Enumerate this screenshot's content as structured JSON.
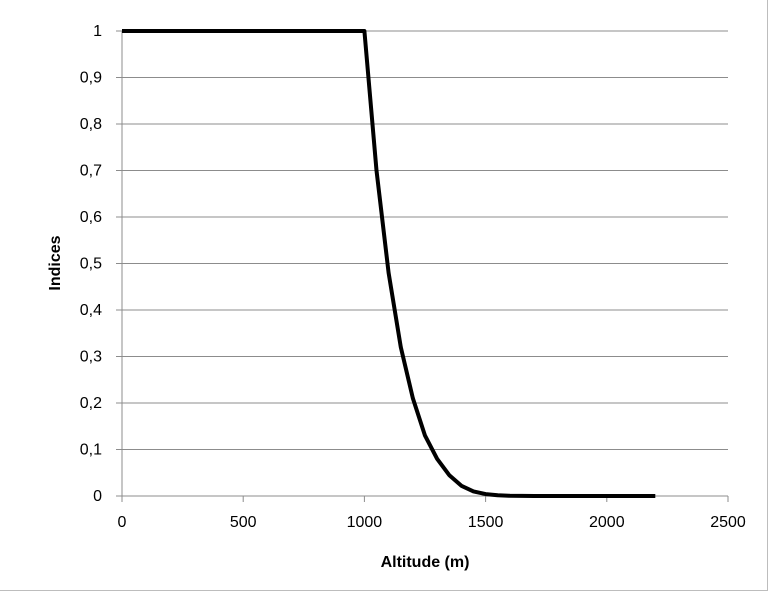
{
  "chart_data": {
    "type": "line",
    "title": "",
    "xlabel": "Altitude (m)",
    "ylabel": "Indices",
    "xlim": [
      0,
      2500
    ],
    "ylim": [
      0,
      1
    ],
    "x_ticks": [
      "0",
      "500",
      "1000",
      "1500",
      "2000",
      "2500"
    ],
    "y_ticks": [
      "0",
      "0,1",
      "0,2",
      "0,3",
      "0,4",
      "0,5",
      "0,6",
      "0,7",
      "0,8",
      "0,9",
      "1"
    ],
    "grid": "horizontal",
    "legend": "none",
    "series": [
      {
        "color": "#000000",
        "x": [
          0,
          100,
          200,
          300,
          400,
          500,
          600,
          700,
          800,
          900,
          1000,
          1050,
          1100,
          1150,
          1200,
          1250,
          1300,
          1350,
          1400,
          1450,
          1500,
          1550,
          1600,
          1700,
          1800,
          1900,
          2000,
          2100,
          2200
        ],
        "y": [
          1,
          1,
          1,
          1,
          1,
          1,
          1,
          1,
          1,
          1,
          1,
          0.7,
          0.48,
          0.32,
          0.21,
          0.13,
          0.08,
          0.045,
          0.022,
          0.01,
          0.004,
          0.0015,
          0.0005,
          0,
          0,
          0,
          0,
          0,
          0
        ]
      }
    ]
  }
}
